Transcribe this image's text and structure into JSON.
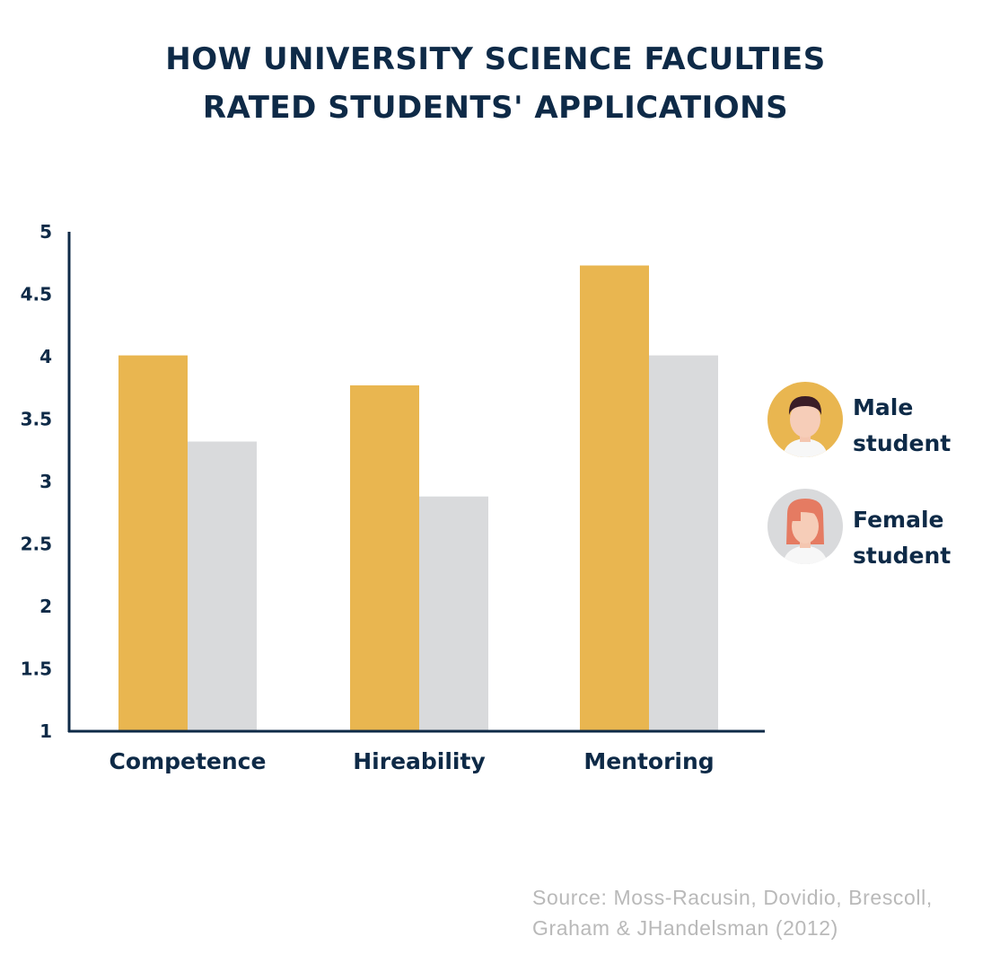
{
  "title": {
    "line1": "HOW UNIVERSITY SCIENCE FACULTIES",
    "line2": "RATED STUDENTS' APPLICATIONS"
  },
  "chart_data": {
    "type": "bar",
    "title": "HOW UNIVERSITY SCIENCE FACULTIES RATED STUDENTS' APPLICATIONS",
    "categories": [
      "Competence",
      "Hireability",
      "Mentoring"
    ],
    "series": [
      {
        "name": "Male student",
        "values": [
          4.01,
          3.77,
          4.73
        ],
        "color": "#e9b650"
      },
      {
        "name": "Female student",
        "values": [
          3.32,
          2.88,
          4.01
        ],
        "color": "#d9dadc"
      }
    ],
    "xlabel": "",
    "ylabel": "",
    "ylim": [
      1,
      5
    ],
    "yticks": [
      "1",
      "1.5",
      "2",
      "2.5",
      "3",
      "3.5",
      "4",
      "4.5",
      "5"
    ],
    "grid": false,
    "legend_position": "right"
  },
  "legend": [
    {
      "line1": "Male",
      "line2": "student",
      "icon": "male-student-icon"
    },
    {
      "line1": "Female",
      "line2": "student",
      "icon": "female-student-icon"
    }
  ],
  "colors": {
    "text": "#0e2a47",
    "male": "#e9b650",
    "female": "#d9dadc",
    "source": "#b9b9b9"
  },
  "source": {
    "line1": "Source: Moss-Racusin, Dovidio, Brescoll,",
    "line2": "Graham & JHandelsman (2012)"
  }
}
